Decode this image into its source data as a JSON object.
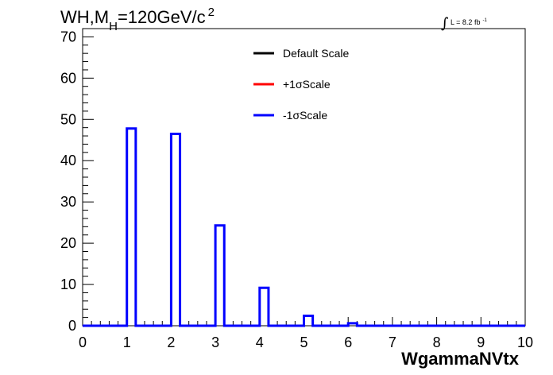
{
  "chart_data": {
    "type": "histogram",
    "title": {
      "prefix": "WH,M",
      "subscript": "H",
      "suffix": "=120GeV/c",
      "superscript": "2"
    },
    "luminosity": {
      "text": "L = 8.2 fb",
      "superscript": "-1"
    },
    "xlabel": "WgammaNVtx",
    "ylabel": "",
    "xlim": [
      0,
      10
    ],
    "ylim": [
      0,
      72
    ],
    "xticks": [
      0,
      1,
      2,
      3,
      4,
      5,
      6,
      7,
      8,
      9,
      10
    ],
    "yticks": [
      0,
      10,
      20,
      30,
      40,
      50,
      60,
      70
    ],
    "bin_width": 0.2,
    "bin_start": 0,
    "legend": [
      {
        "name": "Default Scale",
        "color": "#000000"
      },
      {
        "name": "+1σScale",
        "color": "#ff0000"
      },
      {
        "name": "-1σScale",
        "color": "#0000ff"
      }
    ],
    "series": [
      {
        "name": "-1σScale",
        "color": "#0000ff",
        "bins": [
          {
            "low": 1.0,
            "high": 1.2,
            "value": 47.8
          },
          {
            "low": 2.0,
            "high": 2.2,
            "value": 46.5
          },
          {
            "low": 3.0,
            "high": 3.2,
            "value": 24.3
          },
          {
            "low": 4.0,
            "high": 4.2,
            "value": 9.2
          },
          {
            "low": 5.0,
            "high": 5.2,
            "value": 2.4
          },
          {
            "low": 6.0,
            "high": 6.2,
            "value": 0.6
          }
        ]
      }
    ]
  }
}
